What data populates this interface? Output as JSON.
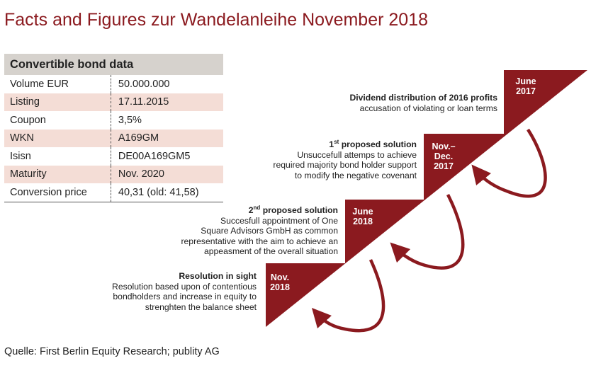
{
  "title": "Facts and Figures zur Wandelanleihe November 2018",
  "table": {
    "header": "Convertible bond data",
    "rows": [
      {
        "label": "Volume EUR",
        "value": "50.000.000"
      },
      {
        "label": "Listing",
        "value": "17.11.2015"
      },
      {
        "label": "Coupon",
        "value": "3,5%"
      },
      {
        "label": "WKN",
        "value": "A169GM"
      },
      {
        "label": "Isisn",
        "value": "DE00A169GM5"
      },
      {
        "label": "Maturity",
        "value": "Nov. 2020"
      },
      {
        "label": "Conversion price",
        "value": "40,31 (old: 41,58)"
      }
    ]
  },
  "steps": [
    {
      "date": "Nov.\n2018",
      "heading": "Resolution in sight",
      "text": "Resolution based upon of contentious\nbondholders and increase in equity to\nstrenghten the balance sheet"
    },
    {
      "date": "June\n2018",
      "heading": "2nd proposed solution",
      "heading_base": "2",
      "heading_sup": "nd",
      "heading_rest": " proposed solution",
      "text": "Succesfull appointment of One\nSquare Advisors GmbH as common\nrepresentative with the aim to achieve an\nappeasment of the overall situation"
    },
    {
      "date": "Nov.–\nDec.\n2017",
      "heading": "1st proposed solution",
      "heading_base": "1",
      "heading_sup": "st",
      "heading_rest": " proposed solution",
      "text": "Unsuccefull attemps to achieve\nrequired majority bond holder support\nto modify the negative covenant"
    },
    {
      "date": "June\n2017",
      "heading": "Dividend distribution of 2016 profits",
      "text": "accusation of violating or loan terms"
    }
  ],
  "source": "Quelle: First Berlin Equity Research; publity AG",
  "colors": {
    "accent": "#8b1a1f",
    "header_bg": "#d6d2cd",
    "row_alt": "#f4ddd6"
  }
}
